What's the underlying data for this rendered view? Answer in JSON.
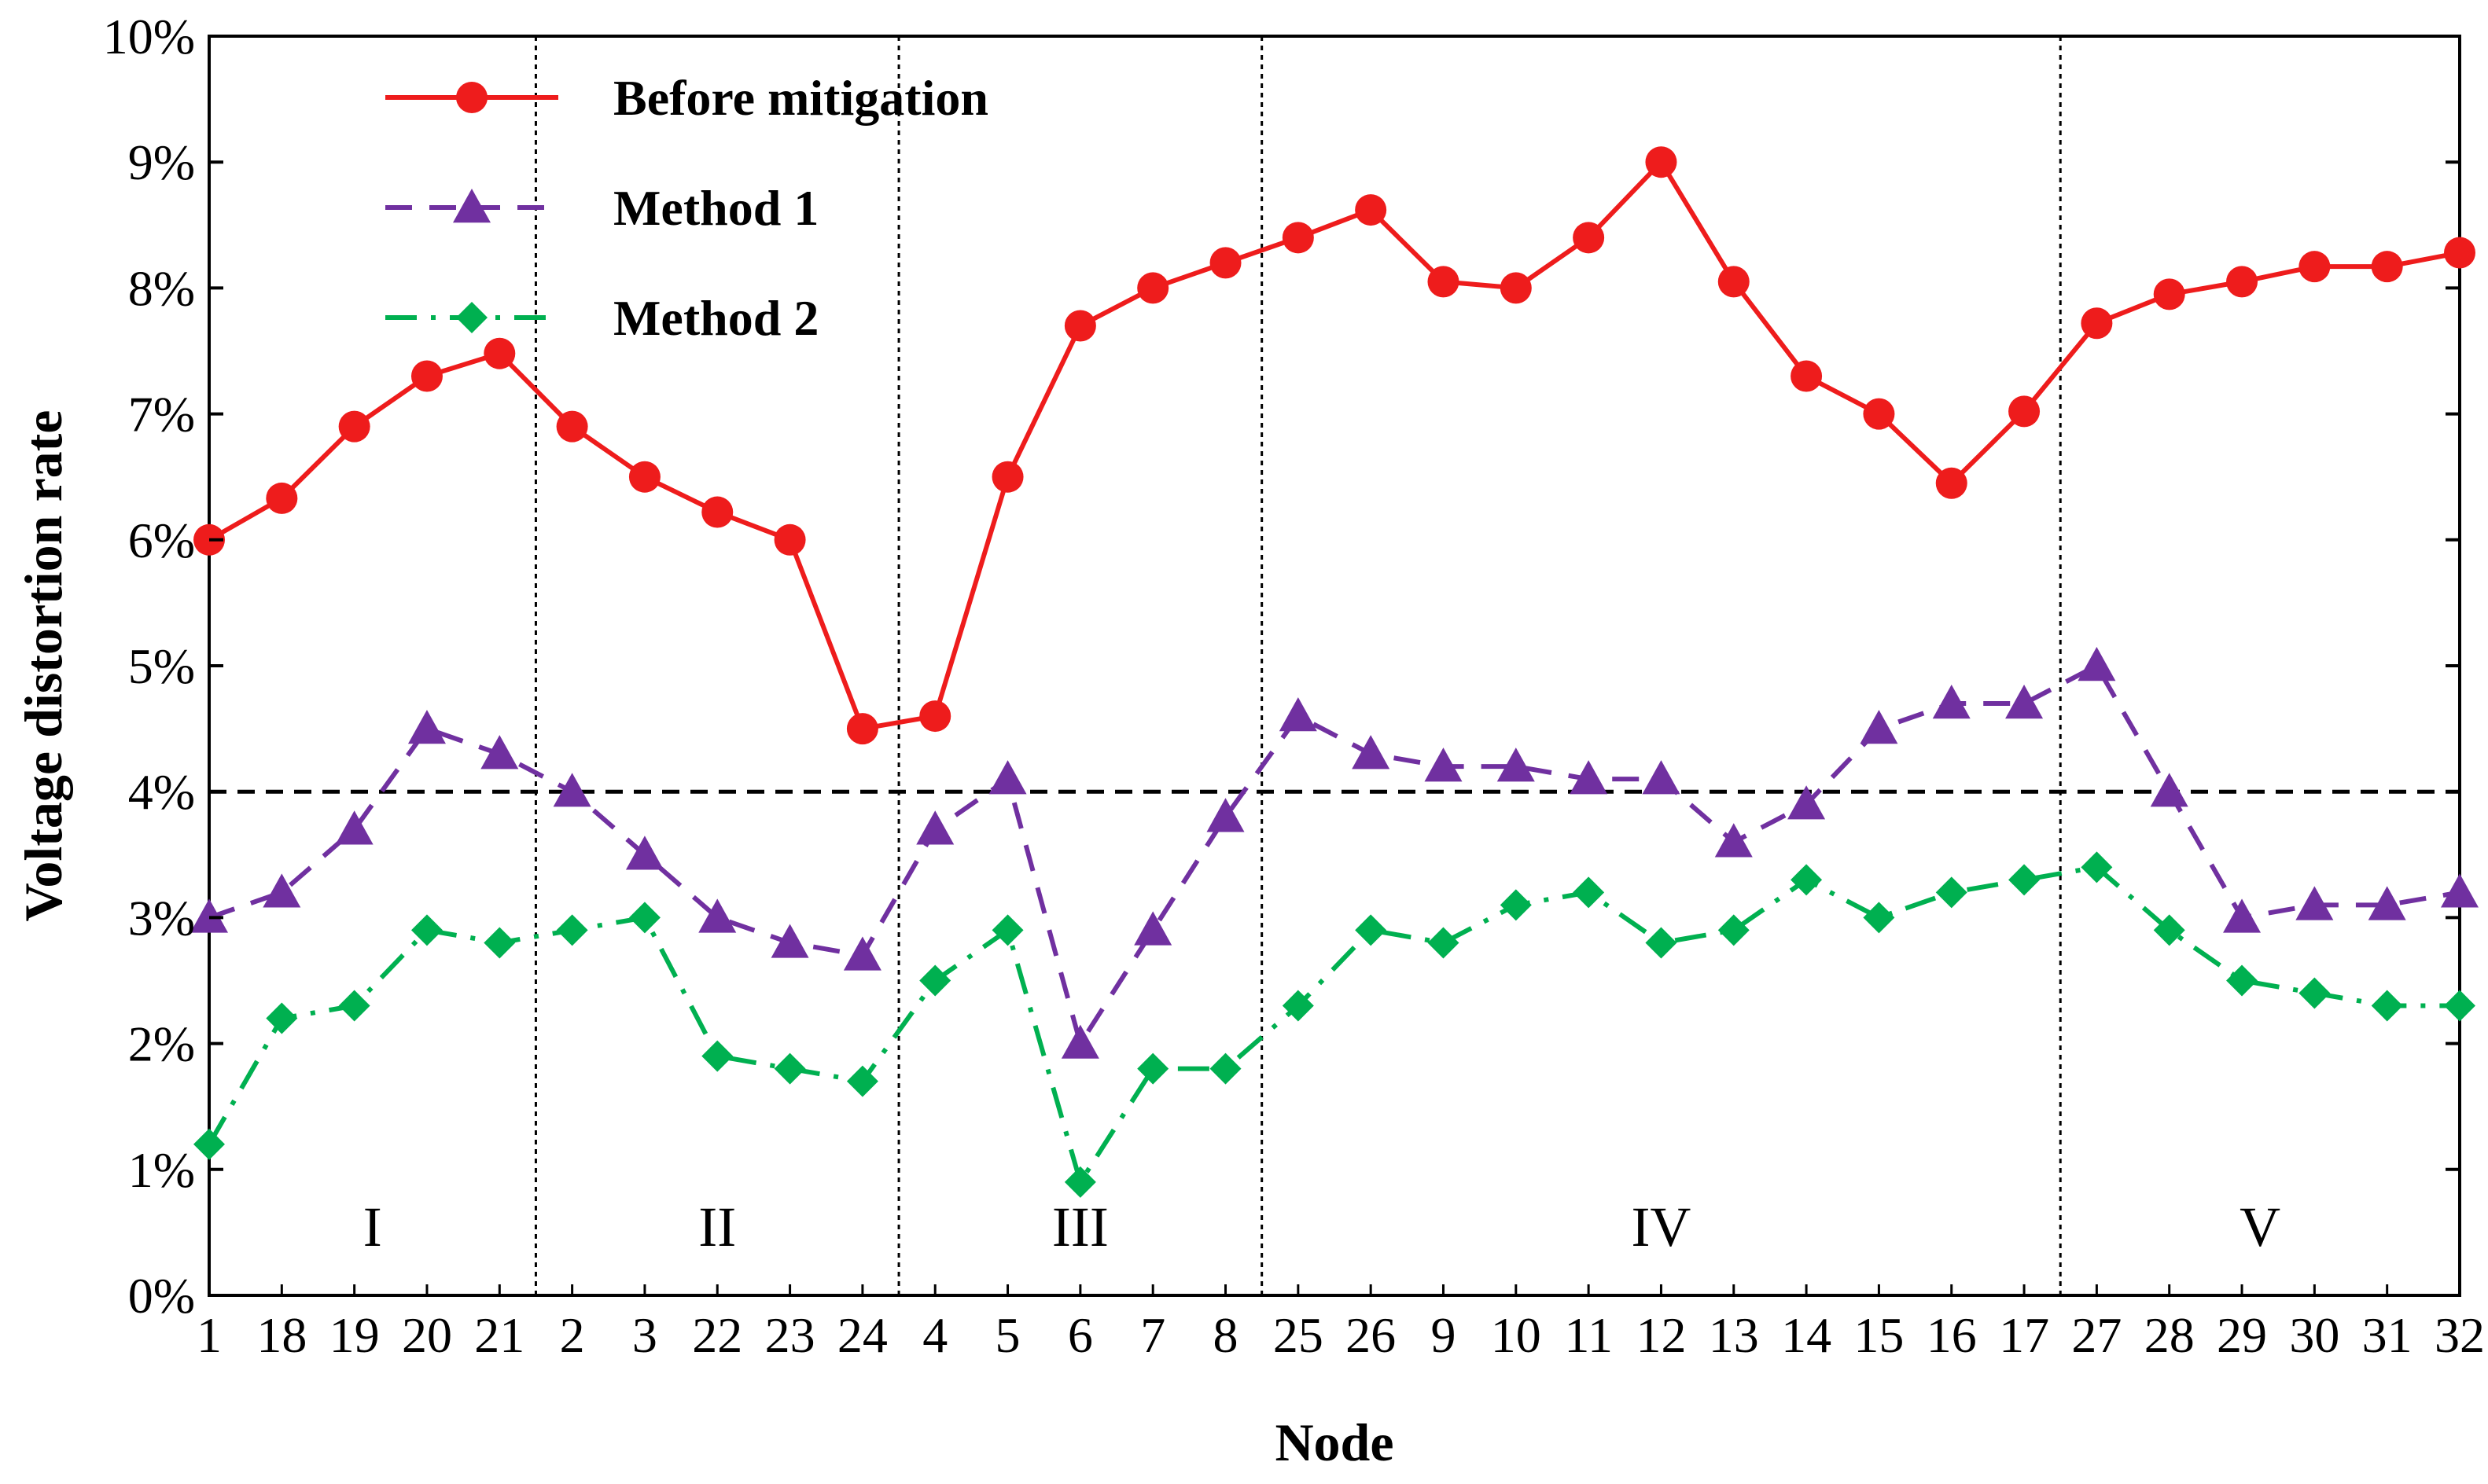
{
  "chart_data": {
    "type": "line",
    "title": "",
    "xlabel": "Node",
    "ylabel": "Voltage distortion rate",
    "ylim": [
      0,
      10
    ],
    "yticks": [
      "0%",
      "1%",
      "2%",
      "3%",
      "4%",
      "5%",
      "6%",
      "7%",
      "8%",
      "9%",
      "10%"
    ],
    "categories": [
      "1",
      "18",
      "19",
      "20",
      "21",
      "2",
      "3",
      "22",
      "23",
      "24",
      "4",
      "5",
      "6",
      "7",
      "8",
      "25",
      "26",
      "9",
      "10",
      "11",
      "12",
      "13",
      "14",
      "15",
      "16",
      "17",
      "27",
      "28",
      "29",
      "30",
      "31",
      "32"
    ],
    "x_positions": [
      1,
      2,
      3,
      4,
      5,
      6,
      6.7,
      8,
      9,
      10,
      11,
      11.8,
      13,
      14,
      15,
      16,
      16.8,
      18,
      18.8,
      19.7,
      20.6,
      21.5,
      22.5,
      23.5,
      24.3,
      25,
      26,
      27,
      28,
      29,
      30,
      30.7
    ],
    "series": [
      {
        "name": "Before mitigation",
        "color": "#ee1c1c",
        "marker": "circle",
        "line": "solid",
        "x": [
          1,
          1.8,
          3,
          4,
          5,
          6.2,
          7.2,
          8.2,
          9.2,
          10.2,
          11.2,
          12.2,
          13.2,
          14.2,
          15.2,
          16.2,
          17.2,
          18.2,
          19.2,
          20.2,
          21.2,
          22.2,
          23.2,
          24.2,
          25.2,
          26.2,
          27.2,
          28.2,
          29.2,
          30.2,
          31.2,
          32.2
        ],
        "values": [
          6.0,
          6.33,
          6.9,
          7.3,
          7.48,
          6.9,
          6.5,
          6.22,
          6.0,
          4.5,
          4.6,
          6.5,
          7.7,
          8.0,
          8.2,
          8.4,
          8.62,
          8.05,
          8.0,
          8.4,
          9.0,
          8.05,
          7.3,
          7.0,
          6.45,
          7.02,
          7.72,
          7.95,
          8.05,
          8.17,
          8.17,
          8.28
        ]
      },
      {
        "name": "Method 1",
        "color": "#7030a0",
        "marker": "triangle",
        "line": "dashed",
        "values": [
          3.0,
          3.2,
          3.7,
          4.5,
          4.3,
          4.0,
          3.5,
          3.0,
          2.8,
          2.7,
          3.7,
          4.1,
          2.0,
          2.9,
          3.8,
          4.6,
          4.3,
          4.2,
          4.2,
          4.1,
          4.1,
          3.6,
          3.9,
          4.5,
          4.7,
          4.7,
          5.0,
          4.0,
          3.0,
          3.1,
          3.1,
          3.2
        ]
      },
      {
        "name": "Method 2",
        "color": "#00b050",
        "marker": "diamond",
        "line": "dashdot",
        "values": [
          1.2,
          2.2,
          2.3,
          2.9,
          2.8,
          2.9,
          3.0,
          1.9,
          1.8,
          1.7,
          2.5,
          2.9,
          0.9,
          1.8,
          1.8,
          2.3,
          2.9,
          2.8,
          3.1,
          3.2,
          2.8,
          2.9,
          3.3,
          3.0,
          3.2,
          3.3,
          3.4,
          2.9,
          2.5,
          2.4,
          2.3,
          2.3
        ]
      }
    ],
    "threshold": {
      "value": 4.0,
      "style": "dashed",
      "color": "#000000"
    },
    "regions": [
      {
        "label": "I",
        "from": 1,
        "to": 5.5
      },
      {
        "label": "II",
        "from": 5.5,
        "to": 10.5
      },
      {
        "label": "III",
        "from": 10.5,
        "to": 15.5
      },
      {
        "label": "IV",
        "from": 15.5,
        "to": 26.5
      },
      {
        "label": "V",
        "from": 26.5,
        "to": 32
      }
    ],
    "legend": {
      "placement": "top-left",
      "entries": [
        "Before mitigation",
        "Method 1",
        "Method 2"
      ]
    },
    "grid": false
  }
}
